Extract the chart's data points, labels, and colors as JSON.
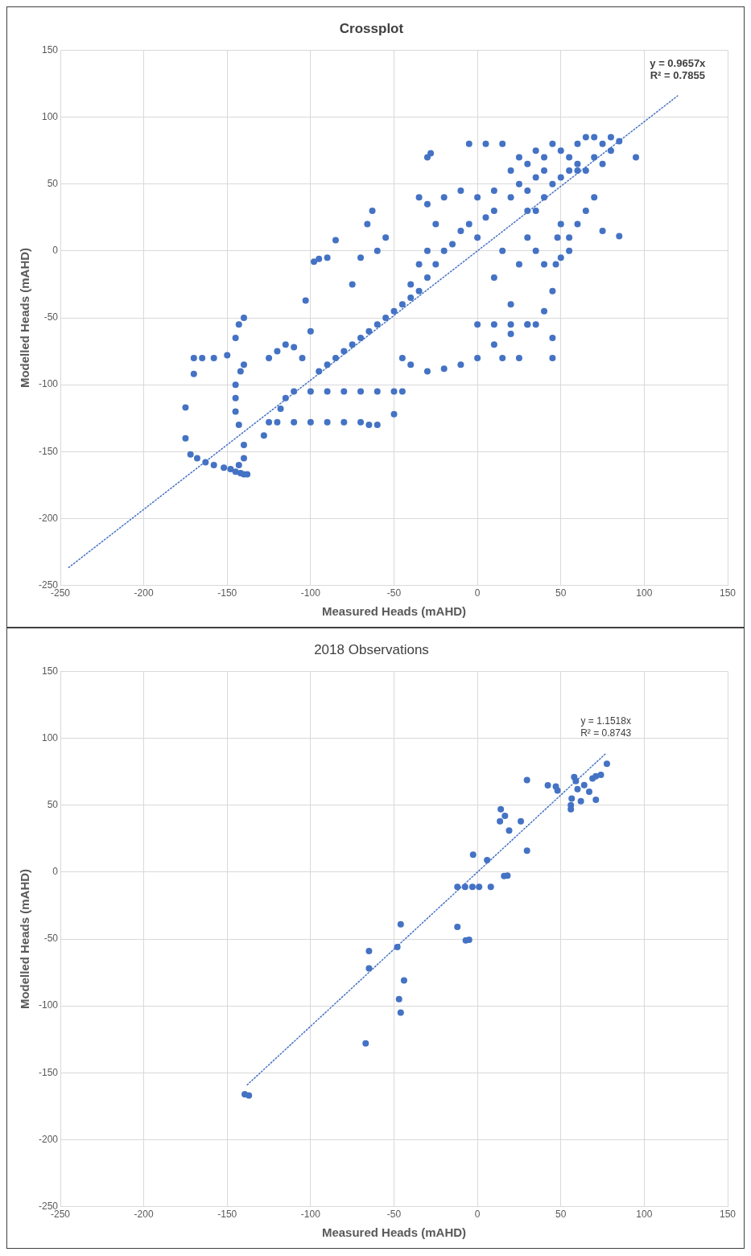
{
  "chart_data": [
    {
      "type": "scatter",
      "title": "Crossplot",
      "xlabel": "Measured Heads (mAHD)",
      "ylabel": "Modelled Heads (mAHD)",
      "xlim": [
        -250,
        150
      ],
      "ylim": [
        -250,
        150
      ],
      "xticks": [
        -250,
        -200,
        -150,
        -100,
        -50,
        0,
        50,
        100,
        150
      ],
      "yticks": [
        -250,
        -200,
        -150,
        -100,
        -50,
        0,
        50,
        100,
        150
      ],
      "grid": true,
      "legend": false,
      "marker": "circle",
      "series": [
        {
          "color": "#4472c4",
          "x": [
            -175,
            -175,
            -172,
            -168,
            -163,
            -158,
            -152,
            -148,
            -145,
            -142,
            -140,
            -138,
            -143,
            -140,
            -140,
            -143,
            -145,
            -145,
            -145,
            -142,
            -140,
            -145,
            -143,
            -140,
            -170,
            -165,
            -158,
            -150,
            -170,
            -128,
            -125,
            -120,
            -110,
            -100,
            -90,
            -80,
            -70,
            -65,
            -60,
            -50,
            -118,
            -115,
            -110,
            -100,
            -90,
            -80,
            -70,
            -60,
            -50,
            -45,
            -125,
            -120,
            -115,
            -110,
            -105,
            -100,
            -103,
            -98,
            -95,
            -90,
            -85,
            -75,
            -70,
            -66,
            -63,
            -60,
            -55,
            -40,
            -95,
            -90,
            -85,
            -80,
            -75,
            -70,
            -65,
            -60,
            -55,
            -50,
            -45,
            -40,
            -35,
            -30,
            -25,
            -20,
            -15,
            -10,
            -5,
            0,
            5,
            10,
            -35,
            -30,
            -25,
            -30,
            -35,
            -30,
            -28,
            -20,
            -10,
            -5,
            5,
            15,
            -45,
            -40,
            -30,
            -20,
            -10,
            0,
            10,
            20,
            30,
            40,
            45,
            47,
            48,
            50,
            0,
            10,
            20,
            30,
            35,
            45,
            45,
            15,
            25,
            20,
            10,
            25,
            15,
            30,
            35,
            40,
            20,
            25,
            30,
            35,
            40,
            45,
            50,
            55,
            60,
            65,
            70,
            75,
            80,
            85,
            95,
            20,
            25,
            30,
            35,
            40,
            45,
            50,
            55,
            60,
            65,
            70,
            75,
            80,
            70,
            65,
            60,
            55,
            55,
            50,
            75,
            85,
            60,
            30,
            10,
            0,
            35,
            40
          ],
          "values": [
            -117,
            -140,
            -152,
            -155,
            -158,
            -160,
            -162,
            -163,
            -165,
            -166,
            -167,
            -167,
            -160,
            -155,
            -145,
            -130,
            -120,
            -110,
            -100,
            -90,
            -85,
            -65,
            -55,
            -50,
            -80,
            -80,
            -80,
            -78,
            -92,
            -138,
            -128,
            -128,
            -128,
            -128,
            -128,
            -128,
            -128,
            -130,
            -130,
            -122,
            -118,
            -110,
            -105,
            -105,
            -105,
            -105,
            -105,
            -105,
            -105,
            -105,
            -80,
            -75,
            -70,
            -72,
            -80,
            -60,
            -37,
            -8,
            -6,
            -5,
            8,
            -25,
            -5,
            20,
            30,
            0,
            10,
            -25,
            -90,
            -85,
            -80,
            -75,
            -70,
            -65,
            -60,
            -55,
            -50,
            -45,
            -40,
            -35,
            -30,
            -20,
            -10,
            0,
            5,
            15,
            20,
            10,
            25,
            30,
            -10,
            0,
            20,
            35,
            40,
            70,
            73,
            40,
            45,
            80,
            80,
            80,
            -80,
            -85,
            -90,
            -88,
            -85,
            -80,
            -70,
            -62,
            -55,
            -45,
            -30,
            -10,
            10,
            20,
            -55,
            -55,
            -55,
            -55,
            -55,
            -65,
            -80,
            -80,
            -80,
            -40,
            -20,
            -10,
            0,
            10,
            30,
            40,
            60,
            70,
            65,
            75,
            70,
            80,
            75,
            70,
            80,
            85,
            85,
            80,
            85,
            82,
            70,
            40,
            50,
            45,
            55,
            60,
            50,
            55,
            60,
            65,
            60,
            70,
            65,
            75,
            40,
            30,
            20,
            10,
            0,
            -5,
            15,
            11,
            60,
            30,
            45,
            40,
            0,
            -10
          ]
        },
        {
          "type": "line",
          "color": "#4472c4",
          "line_style": "dotted",
          "marker": "none",
          "x": [
            -245,
            120
          ],
          "values": [
            -236.6,
            115.9
          ]
        }
      ],
      "annotations": [
        "y = 0.9657x",
        "R² = 0.7855"
      ]
    },
    {
      "type": "scatter",
      "title": "2018 Observations",
      "xlabel": "Measured Heads (mAHD)",
      "ylabel": "Modelled Heads (mAHD)",
      "xlim": [
        -250,
        150
      ],
      "ylim": [
        -250,
        150
      ],
      "xticks": [
        -250,
        -200,
        -150,
        -100,
        -50,
        0,
        50,
        100,
        150
      ],
      "yticks": [
        -250,
        -200,
        -150,
        -100,
        -50,
        0,
        50,
        100,
        150
      ],
      "grid": true,
      "legend": false,
      "marker": "circle",
      "series": [
        {
          "color": "#4472c4",
          "x": [
            77.6,
            29.7,
            42.2,
            47,
            48,
            58,
            59,
            60,
            64,
            67,
            69,
            71,
            74,
            71,
            56.5,
            62,
            56,
            56,
            14,
            16.5,
            13.5,
            26,
            19,
            29.7,
            -2.6,
            5.8,
            16,
            18,
            -12,
            -7.4,
            -3,
            1,
            8,
            -12,
            -7,
            -5,
            -46,
            -65,
            -48,
            -65,
            -44,
            -47,
            -46,
            -67,
            -139.5,
            -137
          ],
          "values": [
            81,
            68.7,
            64.8,
            64,
            61,
            71,
            68,
            62,
            65,
            60,
            70,
            71.6,
            72.6,
            54,
            55,
            53,
            50,
            47,
            47,
            42,
            38,
            38,
            31,
            16,
            13,
            9,
            -3,
            -2.7,
            -11,
            -11,
            -11,
            -11,
            -11,
            -41,
            -51,
            -50.6,
            -39,
            -59,
            -56,
            -72,
            -81,
            -95,
            -105,
            -128,
            -166,
            -167
          ]
        },
        {
          "type": "line",
          "color": "#4472c4",
          "line_style": "dotted",
          "marker": "none",
          "x": [
            -138,
            77
          ],
          "values": [
            -159,
            88.7
          ]
        }
      ],
      "annotations": [
        "y = 1.1518x",
        "R² = 0.8743"
      ]
    }
  ]
}
